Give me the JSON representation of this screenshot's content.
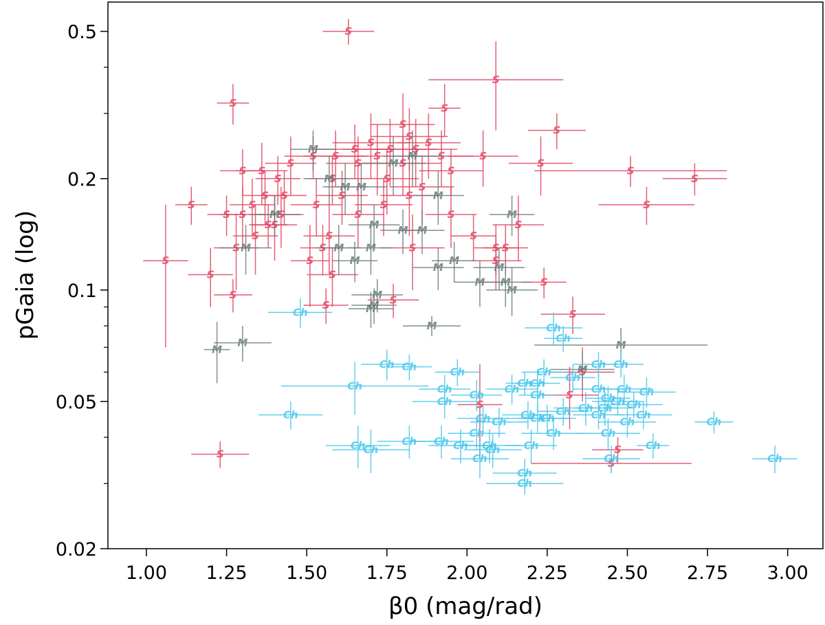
{
  "chart_data": {
    "type": "scatter",
    "title": "",
    "xlabel": "β0 (mag/rad)",
    "ylabel": "pGaia (log)",
    "xlim": [
      0.88,
      3.11
    ],
    "ylim": [
      0.02,
      0.6
    ],
    "yscale": "log",
    "x_ticks": [
      "1.00",
      "1.25",
      "1.50",
      "1.75",
      "2.00",
      "2.25",
      "2.50",
      "2.75",
      "3.00"
    ],
    "y_ticks": [
      "0.02",
      "0.05",
      "0.1",
      "0.2",
      "0.5"
    ],
    "grid": false,
    "series": [
      {
        "name": "S",
        "marker": "S",
        "color": "#e0415e",
        "points": [
          {
            "x": 1.63,
            "y": 0.5,
            "xerr": 0.08,
            "yerr": 0.04
          },
          {
            "x": 2.09,
            "y": 0.37,
            "xerr": 0.21,
            "yerr": 0.1
          },
          {
            "x": 1.27,
            "y": 0.32,
            "xerr": 0.05,
            "yerr": 0.04
          },
          {
            "x": 1.93,
            "y": 0.31,
            "xerr": 0.05,
            "yerr": 0.05
          },
          {
            "x": 2.28,
            "y": 0.27,
            "xerr": 0.09,
            "yerr": 0.03
          },
          {
            "x": 1.8,
            "y": 0.28,
            "xerr": 0.1,
            "yerr": 0.06
          },
          {
            "x": 1.82,
            "y": 0.26,
            "xerr": 0.12,
            "yerr": 0.05
          },
          {
            "x": 1.7,
            "y": 0.25,
            "xerr": 0.12,
            "yerr": 0.05
          },
          {
            "x": 1.88,
            "y": 0.25,
            "xerr": 0.1,
            "yerr": 0.05
          },
          {
            "x": 1.76,
            "y": 0.24,
            "xerr": 0.15,
            "yerr": 0.05
          },
          {
            "x": 1.65,
            "y": 0.24,
            "xerr": 0.12,
            "yerr": 0.04
          },
          {
            "x": 1.84,
            "y": 0.24,
            "xerr": 0.13,
            "yerr": 0.05
          },
          {
            "x": 1.59,
            "y": 0.23,
            "xerr": 0.1,
            "yerr": 0.04
          },
          {
            "x": 1.72,
            "y": 0.23,
            "xerr": 0.14,
            "yerr": 0.05
          },
          {
            "x": 1.92,
            "y": 0.23,
            "xerr": 0.1,
            "yerr": 0.04
          },
          {
            "x": 2.05,
            "y": 0.23,
            "xerr": 0.11,
            "yerr": 0.04
          },
          {
            "x": 1.66,
            "y": 0.22,
            "xerr": 0.1,
            "yerr": 0.04
          },
          {
            "x": 1.8,
            "y": 0.22,
            "xerr": 0.12,
            "yerr": 0.04
          },
          {
            "x": 1.95,
            "y": 0.21,
            "xerr": 0.1,
            "yerr": 0.03
          },
          {
            "x": 1.45,
            "y": 0.22,
            "xerr": 0.08,
            "yerr": 0.04
          },
          {
            "x": 1.52,
            "y": 0.23,
            "xerr": 0.09,
            "yerr": 0.03
          },
          {
            "x": 2.23,
            "y": 0.22,
            "xerr": 0.1,
            "yerr": 0.04
          },
          {
            "x": 2.51,
            "y": 0.21,
            "xerr": 0.3,
            "yerr": 0.02
          },
          {
            "x": 2.71,
            "y": 0.2,
            "xerr": 0.1,
            "yerr": 0.02
          },
          {
            "x": 1.36,
            "y": 0.21,
            "xerr": 0.08,
            "yerr": 0.04
          },
          {
            "x": 1.3,
            "y": 0.21,
            "xerr": 0.07,
            "yerr": 0.03
          },
          {
            "x": 1.41,
            "y": 0.2,
            "xerr": 0.07,
            "yerr": 0.03
          },
          {
            "x": 1.58,
            "y": 0.2,
            "xerr": 0.08,
            "yerr": 0.03
          },
          {
            "x": 1.75,
            "y": 0.2,
            "xerr": 0.1,
            "yerr": 0.04
          },
          {
            "x": 1.86,
            "y": 0.19,
            "xerr": 0.1,
            "yerr": 0.04
          },
          {
            "x": 1.61,
            "y": 0.18,
            "xerr": 0.08,
            "yerr": 0.03
          },
          {
            "x": 1.82,
            "y": 0.18,
            "xerr": 0.09,
            "yerr": 0.04
          },
          {
            "x": 1.43,
            "y": 0.18,
            "xerr": 0.07,
            "yerr": 0.03
          },
          {
            "x": 1.37,
            "y": 0.18,
            "xerr": 0.07,
            "yerr": 0.03
          },
          {
            "x": 1.33,
            "y": 0.17,
            "xerr": 0.07,
            "yerr": 0.03
          },
          {
            "x": 2.56,
            "y": 0.17,
            "xerr": 0.15,
            "yerr": 0.02
          },
          {
            "x": 1.14,
            "y": 0.17,
            "xerr": 0.05,
            "yerr": 0.02
          },
          {
            "x": 1.25,
            "y": 0.16,
            "xerr": 0.06,
            "yerr": 0.02
          },
          {
            "x": 1.3,
            "y": 0.16,
            "xerr": 0.07,
            "yerr": 0.03
          },
          {
            "x": 1.42,
            "y": 0.16,
            "xerr": 0.07,
            "yerr": 0.03
          },
          {
            "x": 1.53,
            "y": 0.17,
            "xerr": 0.08,
            "yerr": 0.03
          },
          {
            "x": 1.66,
            "y": 0.16,
            "xerr": 0.08,
            "yerr": 0.03
          },
          {
            "x": 1.74,
            "y": 0.17,
            "xerr": 0.09,
            "yerr": 0.03
          },
          {
            "x": 1.95,
            "y": 0.16,
            "xerr": 0.08,
            "yerr": 0.03
          },
          {
            "x": 2.16,
            "y": 0.15,
            "xerr": 0.08,
            "yerr": 0.03
          },
          {
            "x": 1.4,
            "y": 0.15,
            "xerr": 0.07,
            "yerr": 0.03
          },
          {
            "x": 1.38,
            "y": 0.15,
            "xerr": 0.06,
            "yerr": 0.02
          },
          {
            "x": 1.34,
            "y": 0.14,
            "xerr": 0.07,
            "yerr": 0.03
          },
          {
            "x": 1.28,
            "y": 0.13,
            "xerr": 0.07,
            "yerr": 0.03
          },
          {
            "x": 1.57,
            "y": 0.14,
            "xerr": 0.08,
            "yerr": 0.03
          },
          {
            "x": 2.02,
            "y": 0.14,
            "xerr": 0.07,
            "yerr": 0.02
          },
          {
            "x": 1.83,
            "y": 0.13,
            "xerr": 0.1,
            "yerr": 0.03
          },
          {
            "x": 2.09,
            "y": 0.13,
            "xerr": 0.07,
            "yerr": 0.02
          },
          {
            "x": 2.12,
            "y": 0.13,
            "xerr": 0.07,
            "yerr": 0.02
          },
          {
            "x": 1.55,
            "y": 0.13,
            "xerr": 0.07,
            "yerr": 0.02
          },
          {
            "x": 1.51,
            "y": 0.12,
            "xerr": 0.06,
            "yerr": 0.03
          },
          {
            "x": 1.06,
            "y": 0.12,
            "xerr": 0.07,
            "yerr": 0.05
          },
          {
            "x": 2.09,
            "y": 0.12,
            "xerr": 0.08,
            "yerr": 0.02
          },
          {
            "x": 1.58,
            "y": 0.11,
            "xerr": 0.08,
            "yerr": 0.02
          },
          {
            "x": 1.2,
            "y": 0.11,
            "xerr": 0.07,
            "yerr": 0.02
          },
          {
            "x": 2.24,
            "y": 0.105,
            "xerr": 0.07,
            "yerr": 0.01
          },
          {
            "x": 1.27,
            "y": 0.097,
            "xerr": 0.06,
            "yerr": 0.01
          },
          {
            "x": 1.77,
            "y": 0.094,
            "xerr": 0.08,
            "yerr": 0.01
          },
          {
            "x": 1.56,
            "y": 0.091,
            "xerr": 0.07,
            "yerr": 0.01
          },
          {
            "x": 2.33,
            "y": 0.086,
            "xerr": 0.1,
            "yerr": 0.01
          },
          {
            "x": 2.36,
            "y": 0.06,
            "xerr": 0.1,
            "yerr": 0.01
          },
          {
            "x": 2.32,
            "y": 0.052,
            "xerr": 0.09,
            "yerr": 0.01
          },
          {
            "x": 2.04,
            "y": 0.049,
            "xerr": 0.07,
            "yerr": 0.014
          },
          {
            "x": 1.23,
            "y": 0.036,
            "xerr": 0.09,
            "yerr": 0.003
          },
          {
            "x": 2.47,
            "y": 0.037,
            "xerr": 0.08,
            "yerr": 0.003
          },
          {
            "x": 2.45,
            "y": 0.034,
            "xerr": 0.25,
            "yerr": 0.002
          }
        ]
      },
      {
        "name": "M",
        "marker": "M",
        "color": "#6b7b7b",
        "points": [
          {
            "x": 1.52,
            "y": 0.24,
            "xerr": 0.07,
            "yerr": 0.03
          },
          {
            "x": 1.83,
            "y": 0.23,
            "xerr": 0.09,
            "yerr": 0.04
          },
          {
            "x": 1.77,
            "y": 0.22,
            "xerr": 0.1,
            "yerr": 0.04
          },
          {
            "x": 1.57,
            "y": 0.2,
            "xerr": 0.08,
            "yerr": 0.03
          },
          {
            "x": 1.62,
            "y": 0.19,
            "xerr": 0.07,
            "yerr": 0.03
          },
          {
            "x": 1.67,
            "y": 0.19,
            "xerr": 0.08,
            "yerr": 0.03
          },
          {
            "x": 1.91,
            "y": 0.18,
            "xerr": 0.08,
            "yerr": 0.03
          },
          {
            "x": 1.4,
            "y": 0.16,
            "xerr": 0.08,
            "yerr": 0.02
          },
          {
            "x": 2.14,
            "y": 0.16,
            "xerr": 0.07,
            "yerr": 0.02
          },
          {
            "x": 1.71,
            "y": 0.15,
            "xerr": 0.08,
            "yerr": 0.02
          },
          {
            "x": 1.8,
            "y": 0.145,
            "xerr": 0.07,
            "yerr": 0.02
          },
          {
            "x": 1.86,
            "y": 0.145,
            "xerr": 0.07,
            "yerr": 0.02
          },
          {
            "x": 1.31,
            "y": 0.13,
            "xerr": 0.08,
            "yerr": 0.02
          },
          {
            "x": 1.6,
            "y": 0.13,
            "xerr": 0.07,
            "yerr": 0.02
          },
          {
            "x": 1.7,
            "y": 0.13,
            "xerr": 0.07,
            "yerr": 0.02
          },
          {
            "x": 1.65,
            "y": 0.12,
            "xerr": 0.07,
            "yerr": 0.015
          },
          {
            "x": 1.96,
            "y": 0.12,
            "xerr": 0.07,
            "yerr": 0.015
          },
          {
            "x": 1.91,
            "y": 0.115,
            "xerr": 0.08,
            "yerr": 0.015
          },
          {
            "x": 2.1,
            "y": 0.115,
            "xerr": 0.08,
            "yerr": 0.015
          },
          {
            "x": 2.04,
            "y": 0.105,
            "xerr": 0.08,
            "yerr": 0.015
          },
          {
            "x": 2.12,
            "y": 0.105,
            "xerr": 0.08,
            "yerr": 0.015
          },
          {
            "x": 2.14,
            "y": 0.1,
            "xerr": 0.08,
            "yerr": 0.015
          },
          {
            "x": 1.72,
            "y": 0.097,
            "xerr": 0.08,
            "yerr": 0.01
          },
          {
            "x": 1.71,
            "y": 0.091,
            "xerr": 0.07,
            "yerr": 0.01
          },
          {
            "x": 1.7,
            "y": 0.089,
            "xerr": 0.07,
            "yerr": 0.01
          },
          {
            "x": 1.89,
            "y": 0.08,
            "xerr": 0.09,
            "yerr": 0.005
          },
          {
            "x": 2.48,
            "y": 0.071,
            "xerr": 0.27,
            "yerr": 0.008
          },
          {
            "x": 1.3,
            "y": 0.072,
            "xerr": 0.09,
            "yerr": 0.008
          },
          {
            "x": 1.22,
            "y": 0.069,
            "xerr": 0.04,
            "yerr": 0.013
          },
          {
            "x": 2.36,
            "y": 0.061,
            "xerr": 0.1,
            "yerr": 0.007
          }
        ]
      },
      {
        "name": "Ch",
        "marker": "Ch",
        "color": "#44c6ec",
        "points": [
          {
            "x": 1.48,
            "y": 0.087,
            "xerr": 0.1,
            "yerr": 0.008
          },
          {
            "x": 2.27,
            "y": 0.079,
            "xerr": 0.09,
            "yerr": 0.008
          },
          {
            "x": 2.3,
            "y": 0.074,
            "xerr": 0.06,
            "yerr": 0.006
          },
          {
            "x": 1.75,
            "y": 0.063,
            "xerr": 0.08,
            "yerr": 0.006
          },
          {
            "x": 1.82,
            "y": 0.062,
            "xerr": 0.07,
            "yerr": 0.005
          },
          {
            "x": 1.97,
            "y": 0.06,
            "xerr": 0.07,
            "yerr": 0.005
          },
          {
            "x": 2.48,
            "y": 0.063,
            "xerr": 0.07,
            "yerr": 0.005
          },
          {
            "x": 2.41,
            "y": 0.063,
            "xerr": 0.08,
            "yerr": 0.005
          },
          {
            "x": 2.24,
            "y": 0.06,
            "xerr": 0.07,
            "yerr": 0.005
          },
          {
            "x": 2.33,
            "y": 0.058,
            "xerr": 0.07,
            "yerr": 0.005
          },
          {
            "x": 1.65,
            "y": 0.055,
            "xerr": 0.23,
            "yerr": 0.009
          },
          {
            "x": 1.93,
            "y": 0.054,
            "xerr": 0.08,
            "yerr": 0.005
          },
          {
            "x": 2.18,
            "y": 0.056,
            "xerr": 0.06,
            "yerr": 0.004
          },
          {
            "x": 2.22,
            "y": 0.056,
            "xerr": 0.07,
            "yerr": 0.005
          },
          {
            "x": 2.14,
            "y": 0.054,
            "xerr": 0.08,
            "yerr": 0.005
          },
          {
            "x": 2.03,
            "y": 0.052,
            "xerr": 0.08,
            "yerr": 0.005
          },
          {
            "x": 2.22,
            "y": 0.052,
            "xerr": 0.06,
            "yerr": 0.005
          },
          {
            "x": 2.49,
            "y": 0.054,
            "xerr": 0.09,
            "yerr": 0.005
          },
          {
            "x": 2.56,
            "y": 0.053,
            "xerr": 0.09,
            "yerr": 0.005
          },
          {
            "x": 2.41,
            "y": 0.054,
            "xerr": 0.08,
            "yerr": 0.005
          },
          {
            "x": 1.93,
            "y": 0.05,
            "xerr": 0.1,
            "yerr": 0.005
          },
          {
            "x": 2.37,
            "y": 0.048,
            "xerr": 0.1,
            "yerr": 0.005
          },
          {
            "x": 2.43,
            "y": 0.048,
            "xerr": 0.09,
            "yerr": 0.005
          },
          {
            "x": 2.44,
            "y": 0.051,
            "xerr": 0.07,
            "yerr": 0.004
          },
          {
            "x": 2.47,
            "y": 0.05,
            "xerr": 0.08,
            "yerr": 0.004
          },
          {
            "x": 2.52,
            "y": 0.049,
            "xerr": 0.09,
            "yerr": 0.004
          },
          {
            "x": 2.3,
            "y": 0.047,
            "xerr": 0.08,
            "yerr": 0.004
          },
          {
            "x": 1.45,
            "y": 0.046,
            "xerr": 0.1,
            "yerr": 0.004
          },
          {
            "x": 2.19,
            "y": 0.046,
            "xerr": 0.08,
            "yerr": 0.004
          },
          {
            "x": 2.05,
            "y": 0.045,
            "xerr": 0.08,
            "yerr": 0.004
          },
          {
            "x": 2.1,
            "y": 0.044,
            "xerr": 0.09,
            "yerr": 0.004
          },
          {
            "x": 2.22,
            "y": 0.045,
            "xerr": 0.1,
            "yerr": 0.004
          },
          {
            "x": 2.25,
            "y": 0.045,
            "xerr": 0.09,
            "yerr": 0.004
          },
          {
            "x": 2.41,
            "y": 0.046,
            "xerr": 0.08,
            "yerr": 0.004
          },
          {
            "x": 2.55,
            "y": 0.046,
            "xerr": 0.09,
            "yerr": 0.004
          },
          {
            "x": 2.5,
            "y": 0.044,
            "xerr": 0.09,
            "yerr": 0.004
          },
          {
            "x": 2.77,
            "y": 0.044,
            "xerr": 0.06,
            "yerr": 0.003
          },
          {
            "x": 2.03,
            "y": 0.041,
            "xerr": 0.09,
            "yerr": 0.004
          },
          {
            "x": 2.27,
            "y": 0.041,
            "xerr": 0.1,
            "yerr": 0.004
          },
          {
            "x": 2.44,
            "y": 0.041,
            "xerr": 0.1,
            "yerr": 0.004
          },
          {
            "x": 1.82,
            "y": 0.039,
            "xerr": 0.1,
            "yerr": 0.004
          },
          {
            "x": 1.92,
            "y": 0.039,
            "xerr": 0.1,
            "yerr": 0.004
          },
          {
            "x": 1.98,
            "y": 0.038,
            "xerr": 0.1,
            "yerr": 0.004
          },
          {
            "x": 2.07,
            "y": 0.038,
            "xerr": 0.1,
            "yerr": 0.004
          },
          {
            "x": 2.58,
            "y": 0.038,
            "xerr": 0.05,
            "yerr": 0.003
          },
          {
            "x": 1.66,
            "y": 0.038,
            "xerr": 0.1,
            "yerr": 0.005
          },
          {
            "x": 1.7,
            "y": 0.037,
            "xerr": 0.12,
            "yerr": 0.005
          },
          {
            "x": 2.08,
            "y": 0.037,
            "xerr": 0.09,
            "yerr": 0.004
          },
          {
            "x": 2.2,
            "y": 0.038,
            "xerr": 0.08,
            "yerr": 0.004
          },
          {
            "x": 2.04,
            "y": 0.035,
            "xerr": 0.09,
            "yerr": 0.004
          },
          {
            "x": 2.45,
            "y": 0.035,
            "xerr": 0.09,
            "yerr": 0.003
          },
          {
            "x": 2.96,
            "y": 0.035,
            "xerr": 0.07,
            "yerr": 0.003
          },
          {
            "x": 2.18,
            "y": 0.032,
            "xerr": 0.1,
            "yerr": 0.003
          },
          {
            "x": 2.18,
            "y": 0.03,
            "xerr": 0.12,
            "yerr": 0.002
          }
        ]
      }
    ]
  }
}
